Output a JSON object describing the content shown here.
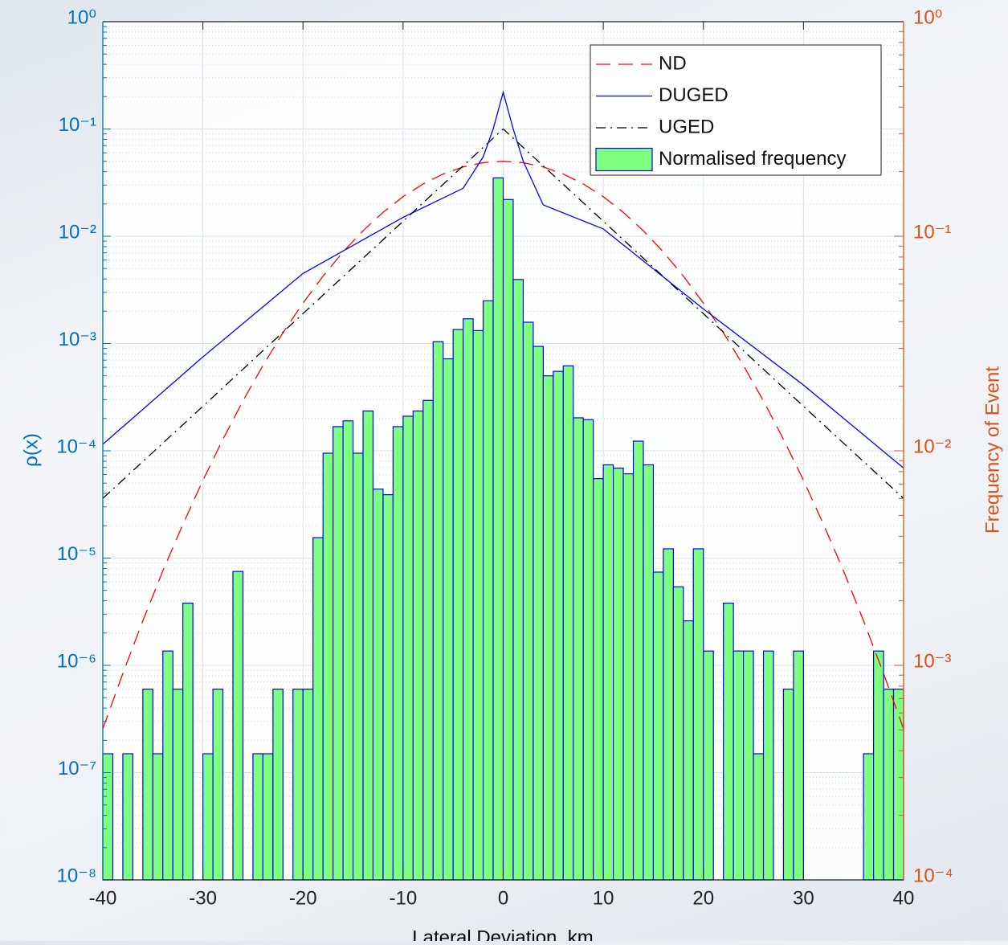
{
  "chart_data": {
    "type": "histogram",
    "xlabel": "Lateral Deviation, km",
    "ylabel": "ρ(x)",
    "y2label": "Frequency of Event",
    "log_y": true,
    "grid": true,
    "minor_grid": true,
    "legend": "upper right",
    "xlim": [
      -40,
      40
    ],
    "xticks": [
      -40,
      -30,
      -20,
      -10,
      0,
      10,
      20,
      30,
      40
    ],
    "ylim": [
      1e-08,
      1
    ],
    "yticks": [
      {
        "value": 1e-08,
        "label": "10⁻⁸"
      },
      {
        "value": 1e-07,
        "label": "10⁻⁷"
      },
      {
        "value": 1e-06,
        "label": "10⁻⁶"
      },
      {
        "value": 1e-05,
        "label": "10⁻⁵"
      },
      {
        "value": 0.0001,
        "label": "10⁻⁴"
      },
      {
        "value": 0.001,
        "label": "10⁻³"
      },
      {
        "value": 0.01,
        "label": "10⁻²"
      },
      {
        "value": 0.1,
        "label": "10⁻¹"
      },
      {
        "value": 1,
        "label": "10⁰"
      }
    ],
    "y2lim": [
      0.0001,
      1
    ],
    "y2ticks": [
      {
        "value": 0.0001,
        "label": "10⁻⁴"
      },
      {
        "value": 0.001,
        "label": "10⁻³"
      },
      {
        "value": 0.01,
        "label": "10⁻²"
      },
      {
        "value": 0.1,
        "label": "10⁻¹"
      },
      {
        "value": 1,
        "label": "10⁰"
      }
    ],
    "y_color": "#0072bd",
    "y2_color": "#d95319",
    "hist": {
      "name": "Normalised frequency",
      "color": "#7fff7f",
      "edgecolor": "#0000ff",
      "bins": [
        -40,
        -39,
        -38,
        -37,
        -36,
        -35,
        -34,
        -33,
        -32,
        -31,
        -30,
        -29,
        -28,
        -27,
        -26,
        -25,
        -24,
        -23,
        -22,
        -21,
        -20,
        -19,
        -18,
        -17,
        -16,
        -15,
        -14,
        -13,
        -12,
        -11,
        -10,
        -9,
        -8,
        -7,
        -6,
        -5,
        -4,
        -3,
        -2,
        -1,
        0,
        1,
        2,
        3,
        4,
        5,
        6,
        7,
        8,
        9,
        10,
        11,
        12,
        13,
        14,
        15,
        16,
        17,
        18,
        19,
        20,
        21,
        22,
        23,
        24,
        25,
        26,
        27,
        28,
        29,
        30,
        31,
        32,
        33,
        34,
        35,
        36,
        37,
        38,
        39,
        40
      ],
      "values": [
        1.5e-07,
        null,
        1.5e-07,
        null,
        6e-07,
        1.5e-07,
        1.36e-06,
        6e-07,
        3.8e-06,
        null,
        1.5e-07,
        6e-07,
        null,
        7.5e-06,
        null,
        1.5e-07,
        1.5e-07,
        6e-07,
        null,
        6e-07,
        6e-07,
        1.55e-05,
        9.5e-05,
        0.000168,
        0.00019,
        9.5e-05,
        0.000235,
        4.4e-05,
        3.9e-05,
        0.000168,
        0.00021,
        0.000235,
        0.000295,
        0.00104,
        0.00072,
        0.00135,
        0.0017,
        0.00132,
        0.0025,
        0.035,
        0.022,
        0.00395,
        0.00158,
        0.00094,
        0.0005,
        0.00055,
        0.00062,
        0.000203,
        0.000195,
        5.5e-05,
        7.4e-05,
        6.9e-05,
        6.1e-05,
        0.000123,
        7.4e-05,
        7.4e-06,
        1.22e-05,
        5.4e-06,
        2.6e-06,
        1.22e-05,
        1.36e-06,
        null,
        3.8e-06,
        1.36e-06,
        1.36e-06,
        1.5e-07,
        1.36e-06,
        null,
        6e-07,
        1.36e-06,
        null,
        null,
        null,
        null,
        null,
        null,
        1.5e-07,
        1.36e-06,
        6e-07,
        6e-07
      ]
    },
    "series": [
      {
        "name": "ND",
        "color": "#ff0000",
        "dash": "dashed",
        "x": [
          -40,
          -38,
          -36,
          -34,
          -32,
          -30,
          -28,
          -26,
          -24,
          -22,
          -20,
          -18,
          -16,
          -14,
          -12,
          -10,
          -8,
          -6,
          -4,
          -2,
          0,
          2,
          4,
          6,
          8,
          10,
          12,
          14,
          16,
          18,
          20,
          22,
          24,
          26,
          28,
          30,
          32,
          34,
          36,
          38,
          40
        ],
        "values": [
          2.56e-07,
          8.4e-07,
          2.6e-06,
          7.6e-06,
          2.06e-05,
          5.3e-05,
          0.000128,
          0.000292,
          0.000624,
          0.00126,
          0.00238,
          0.00425,
          0.00713,
          0.01125,
          0.0167,
          0.0234,
          0.0307,
          0.038,
          0.0443,
          0.0485,
          0.05,
          0.0485,
          0.0443,
          0.038,
          0.0307,
          0.0234,
          0.0167,
          0.01125,
          0.00713,
          0.00425,
          0.00238,
          0.00126,
          0.000624,
          0.000292,
          0.000128,
          5.3e-05,
          2.06e-05,
          7.6e-06,
          2.6e-06,
          8.4e-07,
          2.56e-07
        ]
      },
      {
        "name": "DUGED",
        "color": "#0000ff",
        "dash": "solid",
        "x": [
          -40,
          -30,
          -20,
          -10,
          -4,
          -2,
          -1,
          0,
          1,
          2,
          4,
          10,
          20,
          30,
          40
        ],
        "values": [
          0.000115,
          0.00075,
          0.0045,
          0.015,
          0.028,
          0.055,
          0.1,
          0.22,
          0.1,
          0.05,
          0.0196,
          0.0117,
          0.0021,
          0.00041,
          6.9e-05
        ]
      },
      {
        "name": "UGED",
        "color": "#000000",
        "dash": "dashdot",
        "x": [
          -40,
          -30,
          -20,
          -10,
          0,
          10,
          20,
          30,
          40
        ],
        "values": [
          3.6e-05,
          0.00026,
          0.0019,
          0.0138,
          0.1,
          0.0138,
          0.0019,
          0.00026,
          3.6e-05
        ]
      }
    ]
  }
}
